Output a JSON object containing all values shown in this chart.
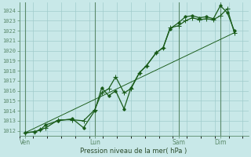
{
  "background_color": "#c8e8e8",
  "grid_color_major": "#a0cccc",
  "grid_color_minor": "#b8e0e0",
  "line_color": "#1a5c1a",
  "vline_color": "#5a8a6a",
  "ylabel_values": [
    1012,
    1013,
    1014,
    1015,
    1016,
    1017,
    1018,
    1019,
    1020,
    1021,
    1022,
    1023,
    1024
  ],
  "ylim": [
    1011.5,
    1024.8
  ],
  "xlabel": "Pression niveau de la mer( hPa )",
  "xtick_labels": [
    "Ven",
    "Lun",
    "Sam",
    "Dim"
  ],
  "xtick_positions": [
    0.0,
    2.5,
    5.5,
    7.0
  ],
  "xvlines": [
    0.0,
    2.5,
    5.5,
    7.0
  ],
  "xlim": [
    -0.2,
    8.0
  ],
  "series1_x": [
    0.0,
    0.35,
    0.55,
    0.75,
    1.2,
    1.7,
    2.1,
    2.5,
    2.75,
    3.0,
    3.25,
    3.55,
    3.8,
    4.1,
    4.35,
    4.7,
    4.95,
    5.2,
    5.5,
    5.75,
    6.0,
    6.25,
    6.5,
    6.75,
    7.0,
    7.25,
    7.5
  ],
  "series1_y": [
    1011.8,
    1011.9,
    1012.1,
    1012.3,
    1013.1,
    1013.1,
    1013.0,
    1014.1,
    1015.8,
    1016.2,
    1017.4,
    1015.8,
    1016.2,
    1017.8,
    1018.5,
    1019.8,
    1020.3,
    1022.3,
    1022.5,
    1023.0,
    1023.3,
    1023.1,
    1023.2,
    1023.1,
    1023.5,
    1024.2,
    1021.8
  ],
  "series2_x": [
    0.0,
    0.35,
    0.55,
    0.75,
    1.2,
    1.7,
    2.1,
    2.5,
    2.75,
    3.0,
    3.25,
    3.55,
    3.8,
    4.1,
    4.35,
    4.7,
    4.95,
    5.2,
    5.5,
    5.75,
    6.0,
    6.25,
    6.5,
    6.75,
    7.0,
    7.25,
    7.5
  ],
  "series2_y": [
    1011.8,
    1011.9,
    1012.1,
    1012.6,
    1013.0,
    1013.2,
    1012.3,
    1014.0,
    1016.3,
    1015.5,
    1016.0,
    1014.2,
    1016.3,
    1017.8,
    1018.5,
    1019.8,
    1020.3,
    1022.2,
    1022.8,
    1023.4,
    1023.5,
    1023.3,
    1023.4,
    1023.2,
    1024.5,
    1023.8,
    1022.0
  ],
  "series3_x": [
    0.0,
    7.5
  ],
  "series3_y": [
    1011.8,
    1021.8
  ],
  "marker_size": 2.5,
  "linewidth": 0.9
}
